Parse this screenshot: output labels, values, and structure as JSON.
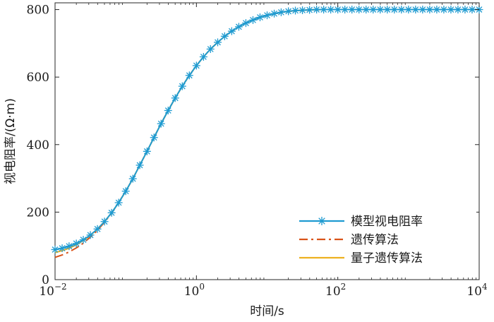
{
  "chart_data": {
    "type": "line",
    "xlabel": "时间/s",
    "ylabel": "视电阻率/(Ω·m)",
    "xscale": "log",
    "xlim": [
      0.01,
      10000
    ],
    "ylim": [
      0,
      820
    ],
    "xticks": [
      {
        "value": 0.01,
        "base": "10",
        "exp": "−2"
      },
      {
        "value": 1,
        "base": "10",
        "exp": "0"
      },
      {
        "value": 100,
        "base": "10",
        "exp": "2"
      },
      {
        "value": 10000,
        "base": "10",
        "exp": "4"
      }
    ],
    "yticks": [
      0,
      200,
      400,
      600,
      800
    ],
    "grid": false,
    "legend_position": "bottom-right",
    "series": [
      {
        "name": "模型视电阻率",
        "color": "#1f9bd1",
        "style": "solid",
        "marker": "asterisk",
        "x": [
          0.01,
          0.0126,
          0.0158,
          0.02,
          0.0251,
          0.0316,
          0.0398,
          0.0501,
          0.0631,
          0.0794,
          0.1,
          0.126,
          0.158,
          0.2,
          0.251,
          0.316,
          0.398,
          0.501,
          0.631,
          0.794,
          1,
          1.26,
          1.58,
          2,
          2.51,
          3.16,
          3.98,
          5.01,
          6.31,
          7.94,
          10,
          12.6,
          15.8,
          20,
          25.1,
          31.6,
          39.8,
          50.1,
          63.1,
          79.4,
          100,
          125.9,
          158.5,
          199.5,
          251.2,
          316.2,
          398.1,
          501.2,
          631,
          794.3,
          1000,
          1258.9,
          1584.9,
          1995.3,
          2511.9,
          3162.3,
          3981.1,
          5011.9,
          6309.6,
          7943.3,
          10000
        ],
        "y": [
          89,
          93,
          99,
          107,
          118,
          132,
          150,
          172,
          198,
          228,
          262,
          299,
          339,
          380,
          421,
          462,
          501,
          538,
          573,
          605,
          634,
          660,
          683,
          703,
          721,
          736,
          749,
          760,
          769,
          777,
          783,
          788,
          792,
          795,
          797,
          798,
          799,
          800,
          800,
          800,
          800,
          800,
          800,
          800,
          800,
          800,
          800,
          800,
          800,
          800,
          800,
          800,
          800,
          800,
          800,
          800,
          800,
          800,
          800,
          800,
          800
        ]
      },
      {
        "name": "遗传算法",
        "color": "#d95319",
        "style": "dashdot",
        "x": [
          0.01,
          0.0126,
          0.0158,
          0.02,
          0.0251,
          0.0316,
          0.0398,
          0.0501,
          0.0631,
          0.0794,
          0.1,
          0.126,
          0.158,
          0.2,
          0.251,
          0.316,
          0.398,
          0.501,
          0.631,
          0.794,
          1,
          1.26,
          1.58,
          2,
          2.51,
          3.16,
          3.98,
          5.01,
          6.31,
          7.94,
          10,
          15.8,
          25.1,
          39.8,
          63.1,
          100,
          158.5,
          251.2,
          398.1,
          631,
          1000,
          1584.9,
          2511.9,
          3981.1,
          6309.6,
          10000
        ],
        "y": [
          66,
          73,
          82,
          94,
          108,
          126,
          146,
          170,
          197,
          228,
          262,
          299,
          339,
          380,
          421,
          462,
          501,
          538,
          573,
          605,
          634,
          660,
          683,
          703,
          721,
          736,
          749,
          760,
          769,
          777,
          783,
          792,
          797,
          799,
          800,
          800,
          800,
          800,
          800,
          800,
          800,
          800,
          800,
          800,
          800,
          800
        ]
      },
      {
        "name": "量子遗传算法",
        "color": "#edb120",
        "style": "solid",
        "x": [
          0.01,
          0.0126,
          0.0158,
          0.02,
          0.0251,
          0.0316,
          0.0398,
          0.0501,
          0.0631,
          0.0794,
          0.1,
          0.126,
          0.158,
          0.2,
          0.251,
          0.316,
          0.398,
          0.501,
          0.631,
          0.794,
          1,
          1.26,
          1.58,
          2,
          2.51,
          3.16,
          3.98,
          5.01,
          6.31,
          7.94,
          10,
          15.8,
          25.1,
          39.8,
          63.1,
          100,
          158.5,
          251.2,
          398.1,
          631,
          1000,
          1584.9,
          2511.9,
          3981.1,
          6309.6,
          10000
        ],
        "y": [
          80,
          86,
          93,
          103,
          116,
          131,
          150,
          172,
          198,
          228,
          262,
          299,
          339,
          380,
          421,
          462,
          501,
          538,
          573,
          605,
          634,
          660,
          683,
          703,
          721,
          736,
          749,
          760,
          769,
          777,
          783,
          792,
          797,
          799,
          800,
          800,
          800,
          800,
          800,
          800,
          800,
          800,
          800,
          800,
          800,
          800
        ]
      }
    ]
  }
}
